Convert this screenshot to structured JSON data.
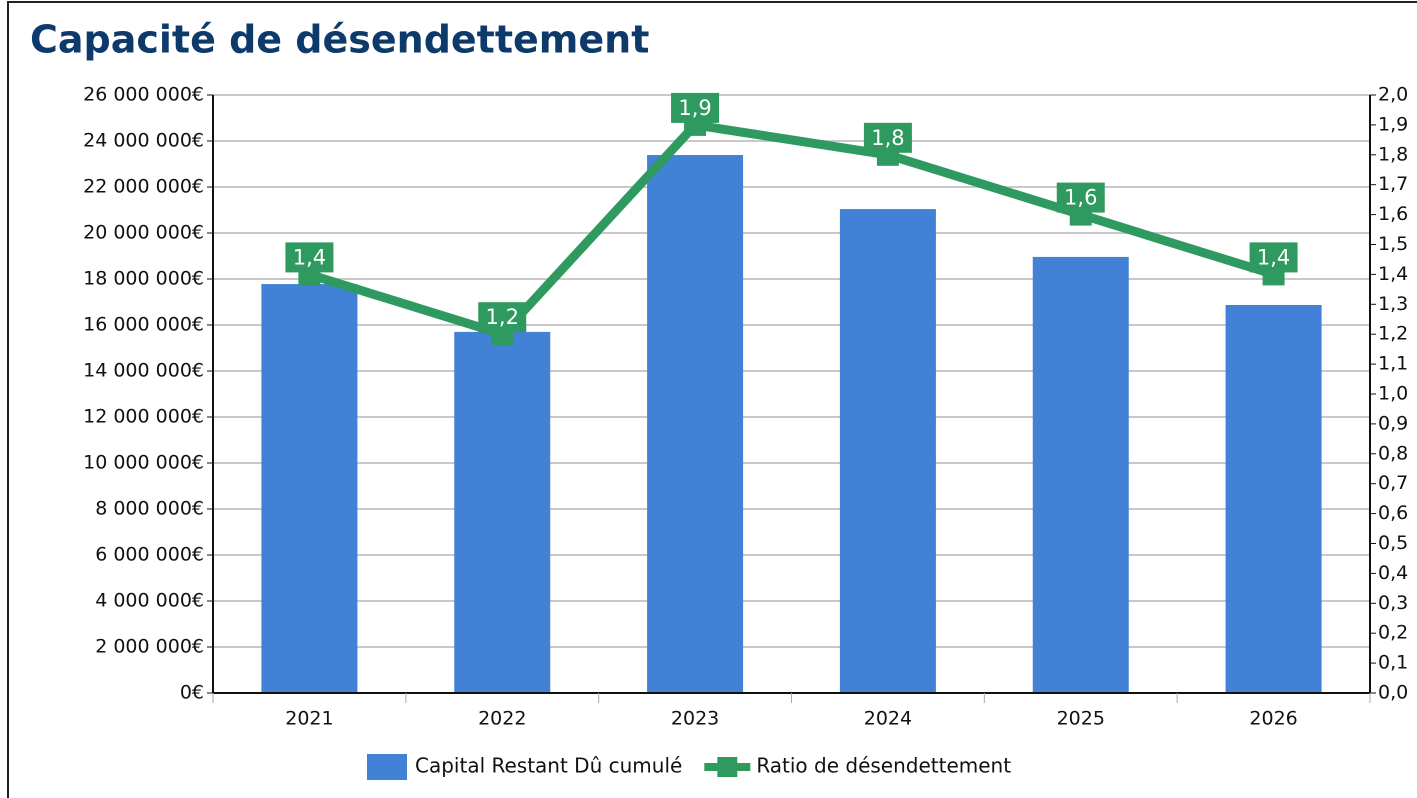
{
  "chart_data": {
    "type": "bar_line",
    "title": "Capacité de désendettement",
    "categories": [
      "2021",
      "2022",
      "2023",
      "2024",
      "2025",
      "2026"
    ],
    "series": [
      {
        "name": "Capital Restant Dû cumulé",
        "color": "#4182d6",
        "type": "bar",
        "values": [
          17780000,
          15700000,
          23390000,
          21040000,
          18960000,
          16870000
        ]
      },
      {
        "name": "Ratio de désendettement",
        "color": "#2e9a5f",
        "type": "line",
        "axis": "y2",
        "values": [
          1.4,
          1.2,
          1.9,
          1.8,
          1.6,
          1.4
        ],
        "value_labels": [
          "1,4",
          "1,2",
          "1,9",
          "1,8",
          "1,6",
          "1,4"
        ]
      }
    ],
    "ylim": [
      0,
      26000000
    ],
    "yticks": [
      {
        "value": 0,
        "label": "0€"
      },
      {
        "value": 2000000,
        "label": "2 000 000€"
      },
      {
        "value": 4000000,
        "label": "4 000 000€"
      },
      {
        "value": 6000000,
        "label": "6 000 000€"
      },
      {
        "value": 8000000,
        "label": "8 000 000€"
      },
      {
        "value": 10000000,
        "label": "10 000 000€"
      },
      {
        "value": 12000000,
        "label": "12 000 000€"
      },
      {
        "value": 14000000,
        "label": "14 000 000€"
      },
      {
        "value": 16000000,
        "label": "16 000 000€"
      },
      {
        "value": 18000000,
        "label": "18 000 000€"
      },
      {
        "value": 20000000,
        "label": "20 000 000€"
      },
      {
        "value": 22000000,
        "label": "22 000 000€"
      },
      {
        "value": 24000000,
        "label": "24 000 000€"
      },
      {
        "value": 26000000,
        "label": "26 000 000€"
      }
    ],
    "y2lim": [
      0,
      2
    ],
    "y2ticks": [
      {
        "value": 0,
        "label": "0,0"
      },
      {
        "value": 0.1,
        "label": "0,1"
      },
      {
        "value": 0.2,
        "label": "0,2"
      },
      {
        "value": 0.3,
        "label": "0,3"
      },
      {
        "value": 0.4,
        "label": "0,4"
      },
      {
        "value": 0.5,
        "label": "0,5"
      },
      {
        "value": 0.6,
        "label": "0,6"
      },
      {
        "value": 0.7,
        "label": "0,7"
      },
      {
        "value": 0.8,
        "label": "0,8"
      },
      {
        "value": 0.9,
        "label": "0,9"
      },
      {
        "value": 1,
        "label": "1,0"
      },
      {
        "value": 1.1,
        "label": "1,1"
      },
      {
        "value": 1.2,
        "label": "1,2"
      },
      {
        "value": 1.3,
        "label": "1,3"
      },
      {
        "value": 1.4,
        "label": "1,4"
      },
      {
        "value": 1.5,
        "label": "1,5"
      },
      {
        "value": 1.6,
        "label": "1,6"
      },
      {
        "value": 1.7,
        "label": "1,7"
      },
      {
        "value": 1.8,
        "label": "1,8"
      },
      {
        "value": 1.9,
        "label": "1,9"
      },
      {
        "value": 2,
        "label": "2,0"
      }
    ],
    "grid": true,
    "legend": "bottom"
  }
}
